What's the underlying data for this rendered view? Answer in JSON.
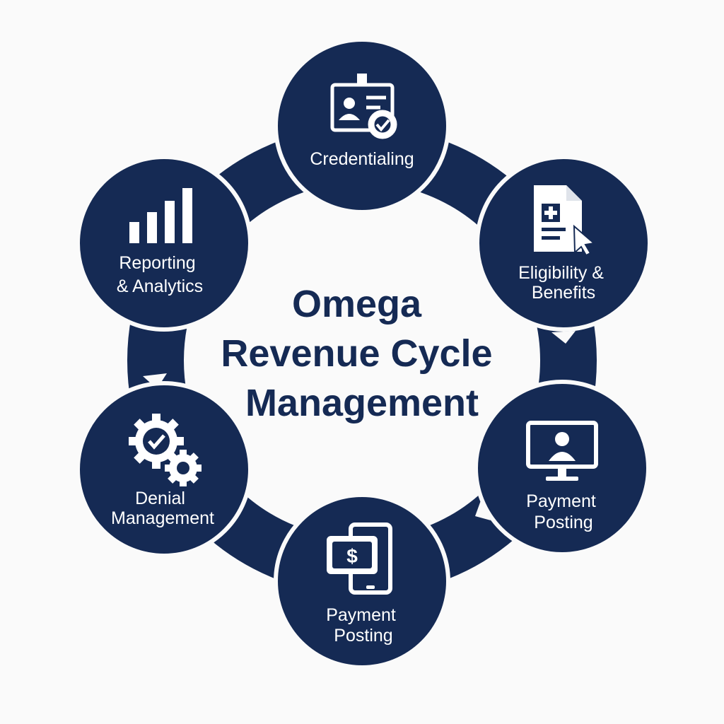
{
  "colors": {
    "navy": "#152a54",
    "white": "#ffffff",
    "background": "#fafafa"
  },
  "center": {
    "title_lines": [
      "Omega",
      "Revenue Cycle",
      "Management"
    ]
  },
  "nodes": [
    {
      "id": "credentialing",
      "icon": "id-badge-check-icon",
      "label_lines": [
        "Credentialing"
      ]
    },
    {
      "id": "eligibility-benefits",
      "icon": "medical-document-cursor-icon",
      "label_lines": [
        "Eligibility &",
        "Benefits"
      ]
    },
    {
      "id": "payment-posting-right",
      "icon": "monitor-user-icon",
      "label_lines": [
        "Payment",
        "Posting"
      ]
    },
    {
      "id": "payment-posting-bottom",
      "icon": "mobile-payment-dollar-icon",
      "label_lines": [
        "Payment",
        "Posting"
      ]
    },
    {
      "id": "denial-management",
      "icon": "gears-check-icon",
      "label_lines": [
        "Denial",
        "Management"
      ]
    },
    {
      "id": "reporting-analytics",
      "icon": "bar-chart-icon",
      "label_lines": [
        "Reporting",
        "& Analytics"
      ]
    }
  ]
}
